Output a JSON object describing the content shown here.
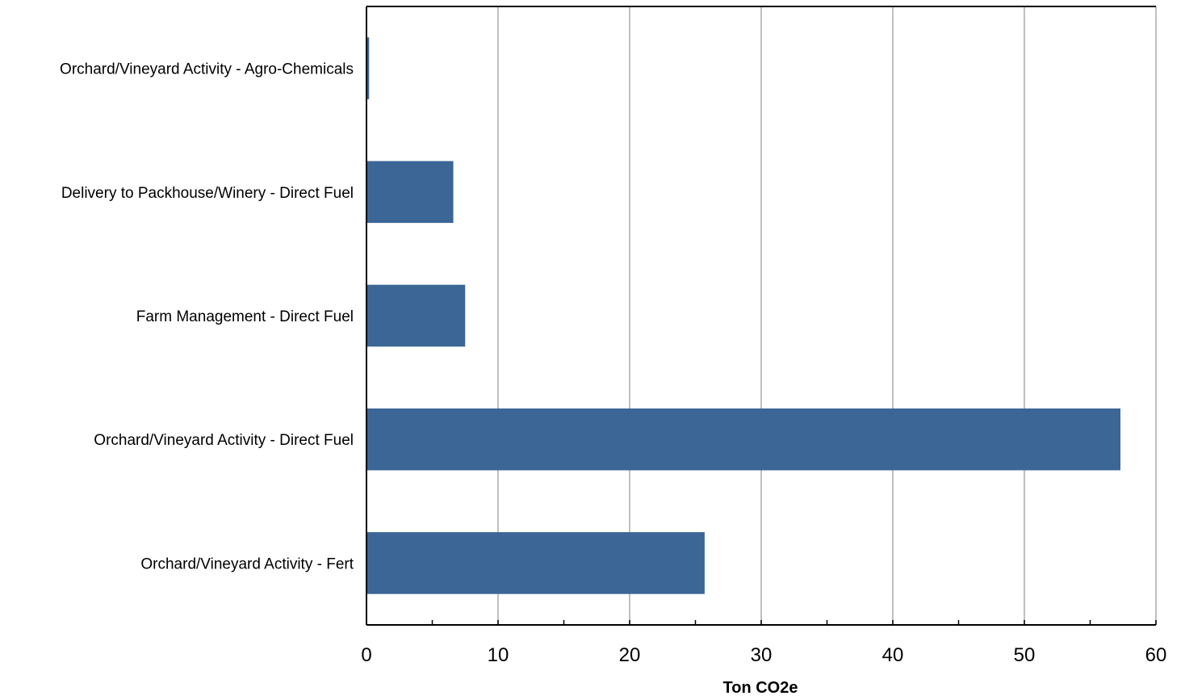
{
  "chart_data": {
    "type": "bar",
    "orientation": "horizontal",
    "categories": [
      "Orchard/Vineyard Activity -  Agro-Chemicals",
      "Delivery to Packhouse/Winery -  Direct Fuel",
      "Farm Management -  Direct Fuel",
      "Orchard/Vineyard Activity -  Direct Fuel",
      "Orchard/Vineyard Activity -  Fert"
    ],
    "values": [
      0.2,
      6.6,
      7.5,
      57.3,
      25.7
    ],
    "xlabel": "Ton CO2e",
    "ylabel": "",
    "title": "",
    "xlim": [
      0,
      60
    ],
    "xticks": [
      0,
      10,
      20,
      30,
      40,
      50,
      60
    ],
    "grid": "vertical major lines",
    "legend": "none",
    "bar_color": "#3b6696",
    "grid_color": "#c0c0c0"
  }
}
